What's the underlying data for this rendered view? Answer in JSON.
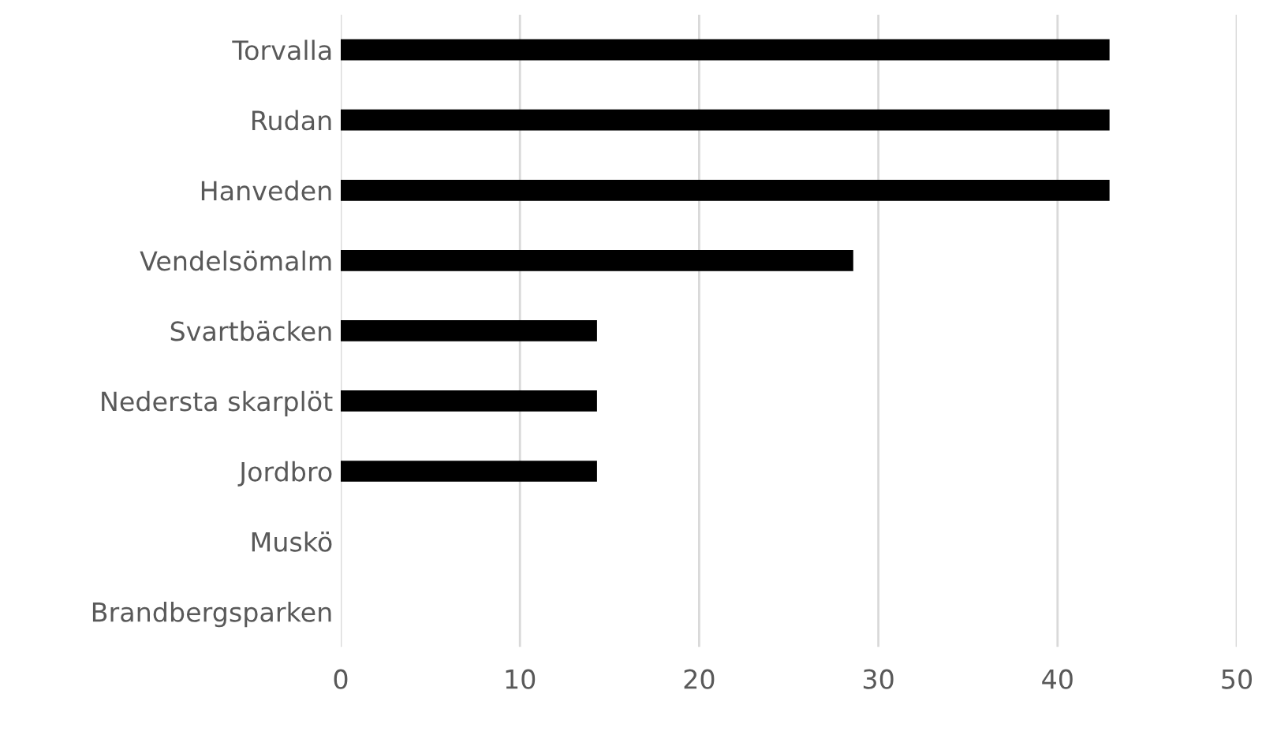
{
  "chart_data": {
    "type": "bar",
    "orientation": "horizontal",
    "categories": [
      "Torvalla",
      "Rudan",
      "Hanveden",
      "Vendelsömalm",
      "Svartbäcken",
      "Nedersta skarplöt",
      "Jordbro",
      "Muskö",
      "Brandbergsparken"
    ],
    "values": [
      42.9,
      42.9,
      42.9,
      28.6,
      14.3,
      14.3,
      14.3,
      0,
      0
    ],
    "color": "#000000",
    "xlim": [
      0,
      50
    ],
    "xticks": [
      0,
      10,
      20,
      30,
      40,
      50
    ],
    "grid": "x",
    "legend": false
  }
}
